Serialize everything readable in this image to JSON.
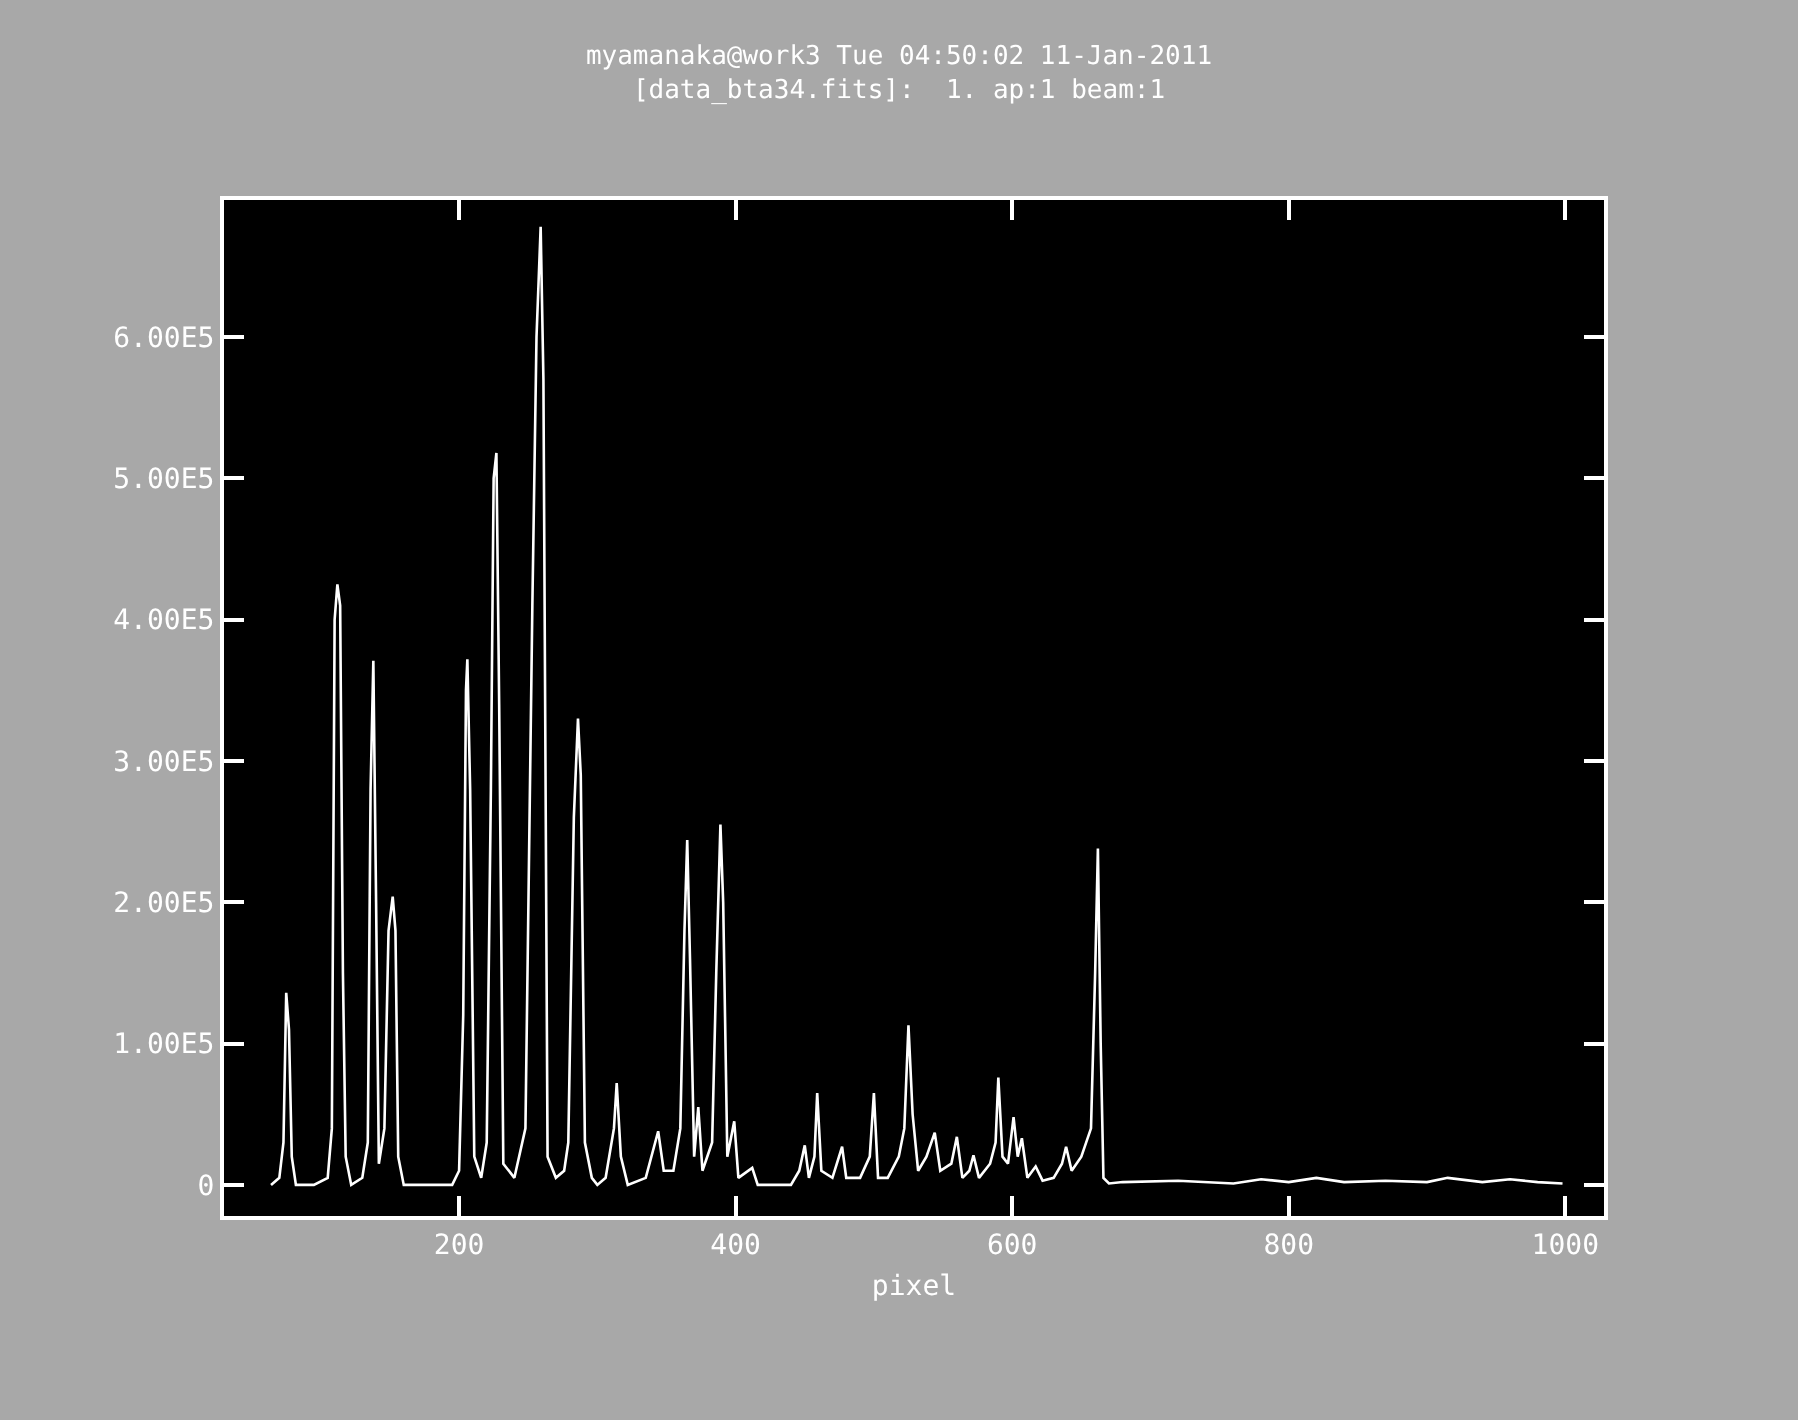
{
  "chart_data": {
    "type": "line",
    "title": "myamanaka@work3 Tue 04:50:02 11-Jan-2011",
    "subtitle": "[data_bta34.fits]:  1. ap:1 beam:1",
    "xlabel": "pixel",
    "xlim": [
      30,
      1028
    ],
    "xticks": [
      200,
      400,
      600,
      800,
      1000
    ],
    "ylim": [
      -22000,
      697000
    ],
    "yticks": [
      {
        "value": 0,
        "label": "0"
      },
      {
        "value": 100000,
        "label": "1.00E5"
      },
      {
        "value": 200000,
        "label": "2.00E5"
      },
      {
        "value": 300000,
        "label": "3.00E5"
      },
      {
        "value": 400000,
        "label": "4.00E5"
      },
      {
        "value": 500000,
        "label": "5.00E5"
      },
      {
        "value": 600000,
        "label": "6.00E5"
      }
    ],
    "grid": false,
    "marker": "none",
    "line_style": "solid",
    "series": [
      {
        "color": "#ffffff",
        "x": [
          64,
          70,
          73,
          75,
          77,
          79,
          82,
          95,
          105,
          108,
          110,
          112,
          114,
          116,
          118,
          122,
          130,
          134,
          136,
          138,
          140,
          142,
          146,
          149,
          152,
          154,
          156,
          160,
          195,
          200,
          203,
          205,
          206,
          208,
          211,
          216,
          220,
          223,
          225,
          227,
          229,
          232,
          240,
          248,
          253,
          256,
          259,
          261,
          264,
          270,
          276,
          279,
          283,
          286,
          288,
          291,
          296,
          300,
          306,
          312,
          314,
          317,
          322,
          335,
          344,
          348,
          355,
          360,
          363,
          365,
          367,
          370,
          373,
          376,
          383,
          386,
          389,
          391,
          394,
          399,
          402,
          412,
          416,
          440,
          446,
          450,
          453,
          457,
          459,
          462,
          470,
          477,
          480,
          490,
          497,
          500,
          503,
          510,
          518,
          522,
          525,
          528,
          532,
          538,
          544,
          548,
          556,
          560,
          564,
          569,
          572,
          576,
          584,
          588,
          590,
          593,
          597,
          601,
          604,
          607,
          611,
          617,
          622,
          630,
          636,
          639,
          643,
          650,
          657,
          660,
          662,
          664,
          666,
          670,
          680,
          720,
          760,
          780,
          800,
          820,
          840,
          870,
          900,
          915,
          940,
          960,
          980,
          998
        ],
        "values": [
          0,
          5000,
          30000,
          136000,
          110000,
          20000,
          0,
          0,
          5000,
          40000,
          400000,
          425000,
          410000,
          150000,
          20000,
          0,
          5000,
          30000,
          280000,
          371000,
          200000,
          15000,
          40000,
          180000,
          204000,
          180000,
          20000,
          0,
          0,
          10000,
          120000,
          350000,
          372000,
          280000,
          20000,
          5000,
          30000,
          280000,
          500000,
          518000,
          340000,
          15000,
          5000,
          40000,
          410000,
          600000,
          678000,
          570000,
          20000,
          5000,
          10000,
          30000,
          260000,
          330000,
          290000,
          30000,
          5000,
          0,
          5000,
          40000,
          72000,
          20000,
          0,
          5000,
          38000,
          10000,
          10000,
          40000,
          180000,
          244000,
          160000,
          20000,
          55000,
          10000,
          30000,
          150000,
          255000,
          200000,
          20000,
          45000,
          5000,
          12000,
          0,
          0,
          10000,
          28000,
          5000,
          20000,
          65000,
          10000,
          5000,
          27000,
          5000,
          5000,
          20000,
          65000,
          5000,
          5000,
          20000,
          40000,
          113000,
          50000,
          10000,
          20000,
          37000,
          10000,
          15000,
          34000,
          5000,
          10000,
          21000,
          5000,
          15000,
          30000,
          76000,
          20000,
          15000,
          48000,
          20000,
          33000,
          5000,
          13000,
          3000,
          5000,
          15000,
          27000,
          10000,
          20000,
          40000,
          150000,
          238000,
          100000,
          5000,
          1000,
          2000,
          3000,
          1000,
          4000,
          2000,
          5000,
          2000,
          3000,
          2000,
          5000,
          2000,
          4000,
          2000,
          1000
        ]
      }
    ]
  }
}
